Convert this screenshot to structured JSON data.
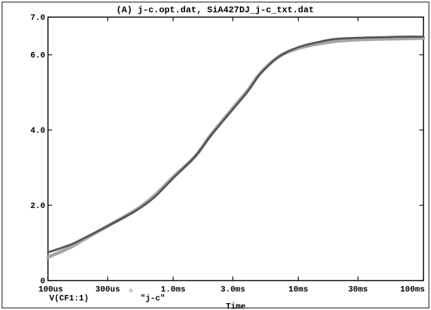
{
  "chart_data": {
    "type": "line",
    "title": "(A) j-c.opt.dat, SiA427DJ_j-c_txt.dat",
    "xlabel": "Time",
    "ylabel": "",
    "x_scale": "log",
    "xlim": [
      "100us",
      "100ms"
    ],
    "ylim": [
      0,
      7.0
    ],
    "grid": false,
    "x_ticks": [
      {
        "label": "100us",
        "value": 0.0001
      },
      {
        "label": "300us",
        "value": 0.0003
      },
      {
        "label": "1.0ms",
        "value": 0.001
      },
      {
        "label": "3.0ms",
        "value": 0.003
      },
      {
        "label": "10ms",
        "value": 0.01
      },
      {
        "label": "30ms",
        "value": 0.03
      },
      {
        "label": "100ms",
        "value": 0.1
      }
    ],
    "y_ticks": [
      {
        "label": "0",
        "value": 0
      },
      {
        "label": "2.0",
        "value": 2.0
      },
      {
        "label": "4.0",
        "value": 4.0
      },
      {
        "label": "6.0",
        "value": 6.0
      },
      {
        "label": "7.0",
        "value": 7.0
      }
    ],
    "legend": [
      {
        "marker": "□",
        "label": "V(CF1:1)"
      },
      {
        "marker": "◇",
        "label": "\"j-c\""
      }
    ],
    "series": [
      {
        "name": "V(CF1:1)",
        "color": "#555555",
        "x": [
          0.0001,
          0.00015,
          0.0002,
          0.0003,
          0.0005,
          0.0007,
          0.001,
          0.0015,
          0.002,
          0.003,
          0.004,
          0.005,
          0.007,
          0.01,
          0.015,
          0.02,
          0.03,
          0.05,
          0.07,
          0.1
        ],
        "y": [
          0.75,
          0.95,
          1.15,
          1.45,
          1.85,
          2.2,
          2.72,
          3.3,
          3.85,
          4.55,
          5.05,
          5.5,
          5.95,
          6.2,
          6.35,
          6.42,
          6.45,
          6.47,
          6.48,
          6.48
        ]
      },
      {
        "name": "\"j-c\"",
        "color": "#a6a6a6",
        "x": [
          0.0001,
          0.00015,
          0.0002,
          0.0003,
          0.0005,
          0.0007,
          0.001,
          0.0015,
          0.002,
          0.003,
          0.004,
          0.005,
          0.007,
          0.01,
          0.015,
          0.02,
          0.03,
          0.05,
          0.07,
          0.1
        ],
        "y": [
          0.62,
          0.88,
          1.12,
          1.45,
          1.87,
          2.24,
          2.75,
          3.3,
          3.87,
          4.58,
          5.08,
          5.52,
          5.95,
          6.17,
          6.3,
          6.36,
          6.4,
          6.42,
          6.43,
          6.44
        ]
      }
    ]
  }
}
